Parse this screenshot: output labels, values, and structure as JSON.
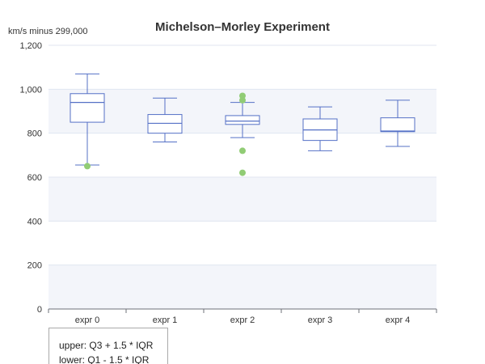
{
  "chart_data": {
    "type": "boxplot",
    "title": "Michelson–Morley Experiment",
    "ylabel": "km/s minus 299,000",
    "xlabel": "",
    "ylim": [
      0,
      1200
    ],
    "yticks": [
      0,
      200,
      400,
      600,
      800,
      1000,
      1200
    ],
    "ytick_labels": [
      "0",
      "200",
      "400",
      "600",
      "800",
      "1,000",
      "1,200"
    ],
    "categories": [
      "expr 0",
      "expr 1",
      "expr 2",
      "expr 3",
      "expr 4"
    ],
    "boxes": [
      {
        "min": 655,
        "q1": 850,
        "median": 940,
        "q3": 980,
        "max": 1070
      },
      {
        "min": 760,
        "q1": 800,
        "median": 845,
        "q3": 885,
        "max": 960
      },
      {
        "min": 780,
        "q1": 840,
        "median": 855,
        "q3": 880,
        "max": 940
      },
      {
        "min": 720,
        "q1": 767,
        "median": 815,
        "q3": 865,
        "max": 920
      },
      {
        "min": 740,
        "q1": 807,
        "median": 810,
        "q3": 870,
        "max": 950
      }
    ],
    "outliers": [
      {
        "category": "expr 0",
        "value": 650
      },
      {
        "category": "expr 2",
        "value": 970
      },
      {
        "category": "expr 2",
        "value": 950
      },
      {
        "category": "expr 2",
        "value": 720
      },
      {
        "category": "expr 2",
        "value": 620
      }
    ],
    "grid": true,
    "colors": {
      "box": "#5470c6",
      "outlier": "#91cc75",
      "band": "#f3f5fa",
      "grid": "#e0e6f1",
      "axis": "#6e7079"
    }
  },
  "note": {
    "lines": [
      "upper: Q3 + 1.5 * IQR",
      "lower: Q1 - 1.5 * IQR"
    ]
  }
}
